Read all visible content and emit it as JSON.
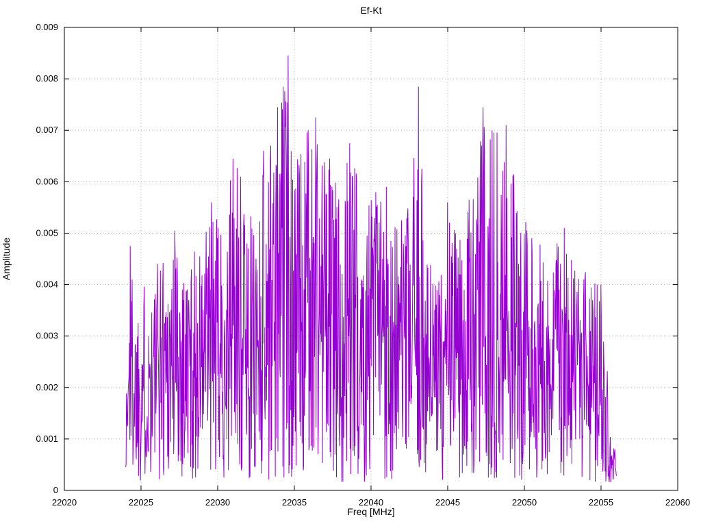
{
  "chart_data": {
    "type": "line",
    "title": "Ef-Kt",
    "xlabel": "Freq [MHz]",
    "ylabel": "Amplitude",
    "xlim": [
      22020,
      22060
    ],
    "ylim": [
      0,
      0.009
    ],
    "xticks": [
      22020,
      22025,
      22030,
      22035,
      22040,
      22045,
      22050,
      22055,
      22060
    ],
    "xtick_labels": [
      "22020",
      "22025",
      "22030",
      "22035",
      "22040",
      "22045",
      "22050",
      "22055",
      "22060"
    ],
    "yticks": [
      0,
      0.001,
      0.002,
      0.003,
      0.004,
      0.005,
      0.006,
      0.007,
      0.008,
      0.009
    ],
    "ytick_labels": [
      "0",
      "0.001",
      "0.002",
      "0.003",
      "0.004",
      "0.005",
      "0.006",
      "0.007",
      "0.008",
      "0.009"
    ],
    "grid": true,
    "legend": "none",
    "line_color": "#9400d3",
    "series": [
      {
        "name": "Ef-Kt",
        "x_start": 22024.0,
        "x_end": 22056.0,
        "n_points": 1300,
        "seed": 1337,
        "noise_floor": 0.00015,
        "envelope": [
          [
            22024.0,
            0.0018
          ],
          [
            22024.3,
            0.0048
          ],
          [
            22024.6,
            0.0038
          ],
          [
            22025.0,
            0.0042
          ],
          [
            22025.6,
            0.004
          ],
          [
            22026.2,
            0.0047
          ],
          [
            22027.2,
            0.0051
          ],
          [
            22028.0,
            0.0046
          ],
          [
            22029.0,
            0.0048
          ],
          [
            22029.6,
            0.0056
          ],
          [
            22030.3,
            0.005
          ],
          [
            22031.0,
            0.0064
          ],
          [
            22031.6,
            0.0061
          ],
          [
            22032.3,
            0.0052
          ],
          [
            22033.0,
            0.0066
          ],
          [
            22033.9,
            0.0075
          ],
          [
            22034.6,
            0.0084
          ],
          [
            22035.2,
            0.0066
          ],
          [
            22035.9,
            0.007
          ],
          [
            22036.5,
            0.0073
          ],
          [
            22037.2,
            0.0065
          ],
          [
            22037.9,
            0.006
          ],
          [
            22038.6,
            0.0068
          ],
          [
            22039.5,
            0.0058
          ],
          [
            22040.2,
            0.0061
          ],
          [
            22041.0,
            0.0058
          ],
          [
            22041.8,
            0.0052
          ],
          [
            22042.6,
            0.0056
          ],
          [
            22043.1,
            0.0078
          ],
          [
            22043.6,
            0.0048
          ],
          [
            22044.3,
            0.0041
          ],
          [
            22045.0,
            0.0056
          ],
          [
            22045.8,
            0.005
          ],
          [
            22046.5,
            0.0057
          ],
          [
            22047.3,
            0.0075
          ],
          [
            22048.0,
            0.007
          ],
          [
            22048.8,
            0.0071
          ],
          [
            22049.6,
            0.0058
          ],
          [
            22050.3,
            0.005
          ],
          [
            22051.0,
            0.0048
          ],
          [
            22051.8,
            0.0046
          ],
          [
            22052.6,
            0.0051
          ],
          [
            22053.4,
            0.0042
          ],
          [
            22054.2,
            0.0043
          ],
          [
            22054.9,
            0.004
          ],
          [
            22055.4,
            0.0024
          ],
          [
            22055.8,
            0.0012
          ],
          [
            22056.0,
            0.0005
          ]
        ],
        "peaks": [
          [
            22024.3,
            0.00475
          ],
          [
            22027.2,
            0.00505
          ],
          [
            22029.6,
            0.0056
          ],
          [
            22031.0,
            0.00645
          ],
          [
            22031.5,
            0.0061
          ],
          [
            22033.0,
            0.0066
          ],
          [
            22033.9,
            0.00745
          ],
          [
            22034.3,
            0.0066
          ],
          [
            22034.6,
            0.00845
          ],
          [
            22035.9,
            0.007
          ],
          [
            22036.4,
            0.00725
          ],
          [
            22037.3,
            0.00645
          ],
          [
            22038.6,
            0.00675
          ],
          [
            22040.3,
            0.0058
          ],
          [
            22041.0,
            0.0059
          ],
          [
            22043.1,
            0.00785
          ],
          [
            22045.0,
            0.0056
          ],
          [
            22046.4,
            0.00565
          ],
          [
            22047.3,
            0.00745
          ],
          [
            22047.9,
            0.007
          ],
          [
            22048.8,
            0.0071
          ],
          [
            22052.6,
            0.0051
          ],
          [
            22055.0,
            0.004
          ]
        ]
      }
    ]
  }
}
